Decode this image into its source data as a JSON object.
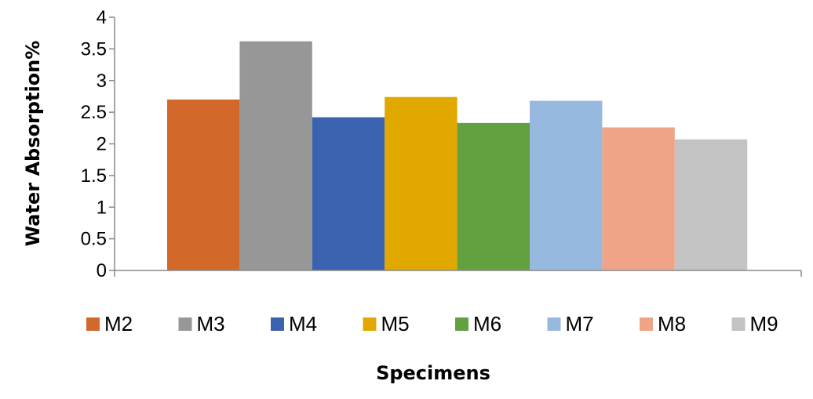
{
  "chart_data": {
    "type": "bar",
    "title": "",
    "xlabel": "Specimens",
    "ylabel": "Water Absorption%",
    "ylim": [
      0,
      4
    ],
    "yticks": [
      "0",
      "0.5",
      "1",
      "1.5",
      "2",
      "2.5",
      "3",
      "3.5",
      "4"
    ],
    "grid": false,
    "legend_position": "bottom",
    "series": [
      {
        "name": "M2",
        "value": 2.7,
        "color": "#D2692A"
      },
      {
        "name": "M3",
        "value": 3.62,
        "color": "#979797"
      },
      {
        "name": "M4",
        "value": 2.42,
        "color": "#3B62AE"
      },
      {
        "name": "M5",
        "value": 2.74,
        "color": "#E1A800"
      },
      {
        "name": "M6",
        "value": 2.33,
        "color": "#63A040"
      },
      {
        "name": "M7",
        "value": 2.68,
        "color": "#97B9E0"
      },
      {
        "name": "M8",
        "value": 2.26,
        "color": "#F0A487"
      },
      {
        "name": "M9",
        "value": 2.07,
        "color": "#C3C3C3"
      }
    ]
  }
}
